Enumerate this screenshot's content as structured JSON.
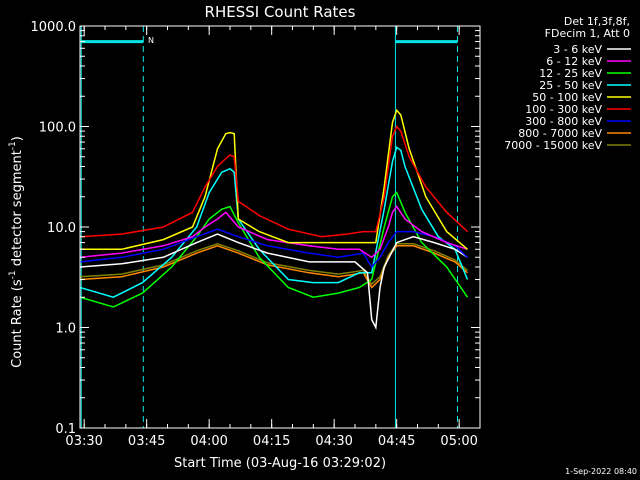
{
  "chart_data": {
    "type": "line",
    "title": "RHESSI Count Rates",
    "xlabel": "Start Time (03-Aug-16 03:29:02)",
    "ylabel_main": "Count Rate (s",
    "ylabel_sup1": "-1",
    "ylabel_mid": " detector segment",
    "ylabel_sup2": "-1",
    "ylabel_end": ")",
    "yscale": "log",
    "ylim": [
      0.1,
      1000
    ],
    "xlim_minutes": [
      0,
      96
    ],
    "x_ticks": [
      {
        "label": "03:30",
        "t": 1
      },
      {
        "label": "03:45",
        "t": 16
      },
      {
        "label": "04:00",
        "t": 31
      },
      {
        "label": "04:15",
        "t": 46
      },
      {
        "label": "04:30",
        "t": 61
      },
      {
        "label": "04:45",
        "t": 76
      },
      {
        "label": "05:00",
        "t": 91
      }
    ],
    "y_ticks": [
      {
        "label": "1000.0",
        "v": 1000
      },
      {
        "label": "100.0",
        "v": 100
      },
      {
        "label": "10.0",
        "v": 10
      },
      {
        "label": "1.0",
        "v": 1
      },
      {
        "label": "0.1",
        "v": 0.1
      }
    ],
    "info_lines": [
      "Det 1f,3f,8f,",
      "FDecim 1, Att 0"
    ],
    "night_marker_label": "N",
    "timestamp": "1-Sep-2022 08:40",
    "series": [
      {
        "name": "3 - 6 keV",
        "color": "#ffffff",
        "x": [
          0,
          10,
          20,
          28,
          33,
          38,
          45,
          55,
          60,
          66,
          69,
          70,
          71,
          72,
          73,
          76,
          80,
          85,
          90,
          93
        ],
        "y": [
          4,
          4.3,
          5,
          7,
          8.5,
          7,
          5.5,
          4.5,
          4.5,
          4.5,
          3.5,
          1.2,
          1.0,
          2.5,
          4,
          7,
          8,
          7,
          6,
          5
        ]
      },
      {
        "name": "6 - 12 keV",
        "color": "#ff00ff",
        "x": [
          0,
          10,
          20,
          27,
          30,
          33,
          35,
          38,
          45,
          55,
          62,
          67,
          70,
          72,
          74,
          75,
          76,
          78,
          82,
          88,
          93
        ],
        "y": [
          5,
          5.5,
          6.5,
          8,
          10,
          12,
          14,
          10,
          7.5,
          6.5,
          6,
          6,
          5,
          6,
          10,
          14,
          16,
          12,
          9,
          7,
          6
        ]
      },
      {
        "name": "12 - 25 keV",
        "color": "#00ff00",
        "x": [
          0,
          8,
          15,
          22,
          28,
          31,
          34,
          36,
          38,
          43,
          50,
          56,
          62,
          67,
          70,
          73,
          75,
          76,
          78,
          82,
          88,
          93
        ],
        "y": [
          2,
          1.6,
          2.2,
          4,
          8,
          12,
          15,
          16,
          11,
          5,
          2.5,
          2,
          2.2,
          2.5,
          3,
          10,
          20,
          22,
          14,
          7,
          4,
          2
        ]
      },
      {
        "name": "25 - 50 keV",
        "color": "#00ffff",
        "x": [
          0,
          8,
          15,
          22,
          28,
          31,
          34,
          36,
          37,
          38,
          43,
          50,
          56,
          62,
          67,
          70,
          73,
          75,
          76,
          77,
          78,
          82,
          86,
          90,
          93
        ],
        "y": [
          2.5,
          2,
          2.8,
          5,
          10,
          22,
          35,
          38,
          35,
          12,
          6,
          3,
          2.8,
          2.8,
          3.5,
          3.5,
          15,
          45,
          62,
          58,
          40,
          15,
          8,
          6,
          3
        ]
      },
      {
        "name": "50 - 100 keV",
        "color": "#ffff00",
        "x": [
          0,
          10,
          20,
          27,
          30,
          33,
          35,
          36,
          37,
          38,
          43,
          50,
          58,
          64,
          68,
          71,
          73,
          75,
          76,
          77,
          79,
          83,
          88,
          93
        ],
        "y": [
          6,
          6,
          7.5,
          10,
          20,
          60,
          85,
          87,
          85,
          12,
          9,
          7,
          7,
          7,
          7,
          7,
          25,
          110,
          145,
          130,
          60,
          20,
          9,
          6
        ]
      },
      {
        "name": "100 - 300 keV",
        "color": "#ff0000",
        "x": [
          0,
          10,
          20,
          27,
          30,
          33,
          35,
          36,
          37,
          38,
          43,
          50,
          58,
          64,
          68,
          71,
          73,
          75,
          76,
          77,
          79,
          83,
          88,
          93
        ],
        "y": [
          8,
          8.5,
          10,
          14,
          25,
          40,
          48,
          52,
          50,
          18,
          13,
          9.5,
          8,
          8.5,
          9,
          9,
          20,
          80,
          100,
          90,
          50,
          25,
          14,
          9
        ]
      },
      {
        "name": "300 - 800 keV",
        "color": "#0000ff",
        "x": [
          0,
          10,
          20,
          28,
          33,
          38,
          45,
          55,
          62,
          68,
          70,
          72,
          74,
          76,
          80,
          85,
          90,
          93
        ],
        "y": [
          4.5,
          5,
          6,
          8,
          9.5,
          8,
          6.5,
          5.5,
          5,
          5.5,
          4,
          5,
          7,
          9,
          9,
          8,
          6.5,
          5
        ]
      },
      {
        "name": "800 - 7000 keV",
        "color": "#ff8800",
        "x": [
          0,
          10,
          20,
          28,
          33,
          38,
          45,
          55,
          62,
          68,
          70,
          72,
          74,
          76,
          80,
          85,
          90,
          93
        ],
        "y": [
          3,
          3.2,
          4,
          5.5,
          6.5,
          5.5,
          4.2,
          3.5,
          3.2,
          3.5,
          2.5,
          3,
          5,
          6.5,
          6.5,
          5.5,
          4.5,
          3.5
        ]
      },
      {
        "name": "7000 - 15000 keV",
        "color": "#808000",
        "x": [
          0,
          10,
          20,
          28,
          33,
          38,
          45,
          55,
          62,
          68,
          70,
          72,
          74,
          76,
          80,
          85,
          90,
          93
        ],
        "y": [
          3.2,
          3.4,
          4.2,
          5.8,
          6.8,
          5.8,
          4.4,
          3.7,
          3.4,
          3.7,
          2.7,
          3.2,
          5.2,
          6.8,
          6.8,
          5.8,
          4.7,
          3.7
        ]
      }
    ]
  }
}
